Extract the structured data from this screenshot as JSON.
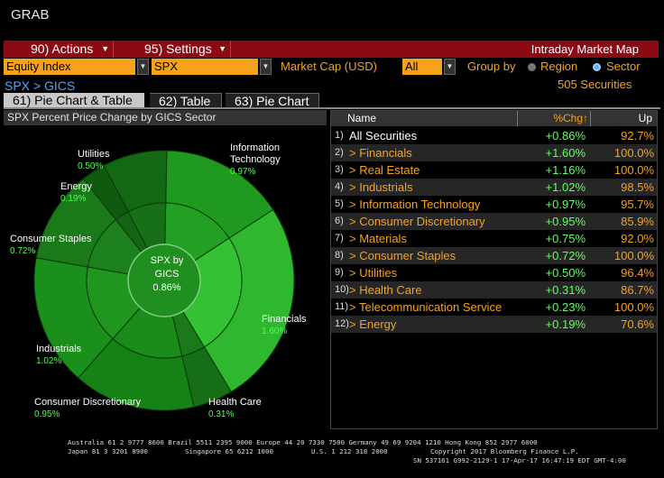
{
  "window": {
    "title": "GRAB"
  },
  "menubar": {
    "actions": "90) Actions",
    "settings": "95) Settings",
    "right_label": "Intraday Market Map"
  },
  "controls": {
    "asset_class": "Equity Index",
    "index": "SPX",
    "metric_label": "Market Cap (USD)",
    "filter": "All",
    "group_by_label": "Group by",
    "group_region": "Region",
    "group_sector": "Sector",
    "group_selected": "Sector"
  },
  "breadcrumb": "SPX > GICS",
  "security_count": "505 Securities",
  "tabs": [
    {
      "label": "61) Pie Chart & Table",
      "active": true
    },
    {
      "label": "62) Table",
      "active": false
    },
    {
      "label": "63) Pie Chart",
      "active": false
    }
  ],
  "panel": {
    "title": "SPX Percent Price Change by GICS Sector",
    "center_line1": "SPX by",
    "center_line2": "GICS",
    "center_value": "0.86%"
  },
  "chart_data": {
    "type": "pie",
    "title": "SPX Percent Price Change by GICS Sector",
    "slices": [
      {
        "name": "Information Technology",
        "value": 0.97
      },
      {
        "name": "Financials",
        "value": 1.6
      },
      {
        "name": "Health Care",
        "value": 0.31
      },
      {
        "name": "Consumer Discretionary",
        "value": 0.95
      },
      {
        "name": "Industrials",
        "value": 1.02
      },
      {
        "name": "Consumer Staples",
        "value": 0.72
      },
      {
        "name": "Energy",
        "value": 0.19
      },
      {
        "name": "Utilities",
        "value": 0.5
      }
    ],
    "slice_labels": [
      {
        "name": "Information Technology",
        "value": "0.97%"
      },
      {
        "name": "Financials",
        "value": "1.60%"
      },
      {
        "name": "Health Care",
        "value": "0.31%"
      },
      {
        "name": "Consumer Discretionary",
        "value": "0.95%"
      },
      {
        "name": "Industrials",
        "value": "1.02%"
      },
      {
        "name": "Consumer Staples",
        "value": "0.72%"
      },
      {
        "name": "Energy",
        "value": "0.19%"
      },
      {
        "name": "Utilities",
        "value": "0.50%"
      }
    ]
  },
  "table": {
    "headers": {
      "name": "Name",
      "chg": "%Chg",
      "up": "Up"
    },
    "rows": [
      {
        "num": "1)",
        "name": "All Securities",
        "chg": "+0.86%",
        "up": "92.7%"
      },
      {
        "num": "2)",
        "name": "> Financials",
        "chg": "+1.60%",
        "up": "100.0%"
      },
      {
        "num": "3)",
        "name": "> Real Estate",
        "chg": "+1.16%",
        "up": "100.0%"
      },
      {
        "num": "4)",
        "name": "> Industrials",
        "chg": "+1.02%",
        "up": "98.5%"
      },
      {
        "num": "5)",
        "name": "> Information Technology",
        "chg": "+0.97%",
        "up": "95.7%"
      },
      {
        "num": "6)",
        "name": "> Consumer Discretionary",
        "chg": "+0.95%",
        "up": "85.9%"
      },
      {
        "num": "7)",
        "name": "> Materials",
        "chg": "+0.75%",
        "up": "92.0%"
      },
      {
        "num": "8)",
        "name": "> Consumer Staples",
        "chg": "+0.72%",
        "up": "100.0%"
      },
      {
        "num": "9)",
        "name": "> Utilities",
        "chg": "+0.50%",
        "up": "96.4%"
      },
      {
        "num": "10)",
        "name": "> Health Care",
        "chg": "+0.31%",
        "up": "86.7%"
      },
      {
        "num": "11)",
        "name": "> Telecommunication Service",
        "chg": "+0.23%",
        "up": "100.0%"
      },
      {
        "num": "12)",
        "name": "> Energy",
        "chg": "+0.19%",
        "up": "70.6%"
      }
    ]
  },
  "footer": {
    "line1": "Australia 61 2 9777 8600 Brazil 5511 2395 9000 Europe 44 20 7330 7500 Germany 49 69 9204 1210 Hong Kong 852 2977 6000",
    "line2a": "Japan 81 3 3201 8900",
    "line2b": "Singapore 65 6212 1000",
    "line2c": "U.S. 1 212 318 2000",
    "line2d": "Copyright 2017 Bloomberg Finance L.P.",
    "line3": "SN 537161 G992-2129-1 17-Apr-17 16:47:19 EDT  GMT-4:00"
  },
  "colors": {
    "menu_red": "#8b0a14",
    "accent_orange": "#f6a21a",
    "link_blue": "#4da6ff",
    "positive_green": "#5fff5f"
  }
}
